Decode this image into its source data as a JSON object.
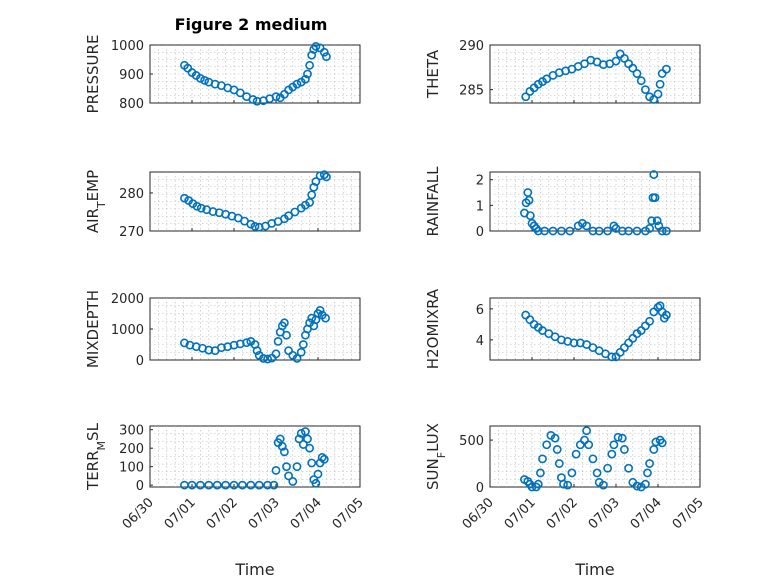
{
  "figure_title": "Figure 2 medium",
  "marker_color": "#0072BD",
  "chart_data": [
    {
      "type": "scatter",
      "ylabel": "PRESSURE",
      "ylim": [
        800,
        1000
      ],
      "yticks": [
        "800",
        "900",
        "1000"
      ],
      "ytick_values": [
        800,
        900,
        1000
      ],
      "xlim": [
        0,
        5
      ],
      "xticks": [],
      "x_start_date": "06/30",
      "grid": true,
      "points": [
        [
          0.82,
          930
        ],
        [
          0.9,
          920
        ],
        [
          1.0,
          905
        ],
        [
          1.1,
          895
        ],
        [
          1.2,
          885
        ],
        [
          1.3,
          878
        ],
        [
          1.4,
          872
        ],
        [
          1.55,
          865
        ],
        [
          1.7,
          860
        ],
        [
          1.85,
          852
        ],
        [
          2.0,
          845
        ],
        [
          2.15,
          835
        ],
        [
          2.3,
          822
        ],
        [
          2.45,
          812
        ],
        [
          2.55,
          806
        ],
        [
          2.7,
          808
        ],
        [
          2.85,
          815
        ],
        [
          3.0,
          822
        ],
        [
          3.1,
          818
        ],
        [
          3.2,
          830
        ],
        [
          3.3,
          845
        ],
        [
          3.4,
          855
        ],
        [
          3.5,
          865
        ],
        [
          3.6,
          872
        ],
        [
          3.7,
          882
        ],
        [
          3.75,
          900
        ],
        [
          3.8,
          930
        ],
        [
          3.85,
          965
        ],
        [
          3.9,
          985
        ],
        [
          3.95,
          995
        ],
        [
          4.05,
          990
        ],
        [
          4.15,
          975
        ],
        [
          4.2,
          960
        ]
      ]
    },
    {
      "type": "scatter",
      "ylabel": "THETA",
      "ylim": [
        283.5,
        290
      ],
      "yticks": [
        "285",
        "290"
      ],
      "ytick_values": [
        285,
        290
      ],
      "xlim": [
        0,
        5
      ],
      "xticks": [],
      "grid": true,
      "points": [
        [
          0.85,
          284.2
        ],
        [
          0.95,
          284.8
        ],
        [
          1.05,
          285.2
        ],
        [
          1.15,
          285.6
        ],
        [
          1.25,
          285.9
        ],
        [
          1.35,
          286.2
        ],
        [
          1.5,
          286.6
        ],
        [
          1.65,
          286.9
        ],
        [
          1.8,
          287.1
        ],
        [
          1.95,
          287.3
        ],
        [
          2.1,
          287.6
        ],
        [
          2.25,
          287.9
        ],
        [
          2.4,
          288.3
        ],
        [
          2.55,
          288.1
        ],
        [
          2.7,
          287.8
        ],
        [
          2.85,
          287.9
        ],
        [
          3.0,
          288.2
        ],
        [
          3.1,
          289.0
        ],
        [
          3.2,
          288.5
        ],
        [
          3.3,
          287.9
        ],
        [
          3.4,
          287.4
        ],
        [
          3.5,
          286.8
        ],
        [
          3.6,
          286.0
        ],
        [
          3.7,
          285.0
        ],
        [
          3.8,
          284.2
        ],
        [
          3.9,
          283.9
        ],
        [
          4.0,
          284.5
        ],
        [
          4.05,
          285.6
        ],
        [
          4.1,
          286.8
        ],
        [
          4.2,
          287.3
        ]
      ]
    },
    {
      "type": "scatter",
      "ylabel_main": "AIR",
      "ylabel_sub": "T",
      "ylabel_tail": "EMP",
      "ylim": [
        270,
        285.5
      ],
      "yticks": [
        "270",
        "280"
      ],
      "ytick_values": [
        270,
        280
      ],
      "xlim": [
        0,
        5
      ],
      "xticks": [],
      "grid": true,
      "points": [
        [
          0.82,
          278.6
        ],
        [
          0.92,
          278.0
        ],
        [
          1.02,
          277.2
        ],
        [
          1.12,
          276.5
        ],
        [
          1.22,
          276.0
        ],
        [
          1.35,
          275.6
        ],
        [
          1.5,
          275.1
        ],
        [
          1.65,
          274.8
        ],
        [
          1.8,
          274.4
        ],
        [
          1.95,
          273.9
        ],
        [
          2.1,
          273.4
        ],
        [
          2.25,
          272.6
        ],
        [
          2.4,
          271.8
        ],
        [
          2.5,
          271.2
        ],
        [
          2.6,
          271.0
        ],
        [
          2.75,
          271.3
        ],
        [
          2.9,
          272.0
        ],
        [
          3.05,
          272.5
        ],
        [
          3.2,
          273.2
        ],
        [
          3.3,
          274.0
        ],
        [
          3.45,
          275.0
        ],
        [
          3.6,
          276.0
        ],
        [
          3.7,
          276.8
        ],
        [
          3.8,
          277.5
        ],
        [
          3.85,
          279.5
        ],
        [
          3.9,
          281.5
        ],
        [
          3.95,
          283.0
        ],
        [
          4.05,
          284.5
        ],
        [
          4.15,
          284.8
        ],
        [
          4.2,
          284.2
        ]
      ]
    },
    {
      "type": "scatter",
      "ylabel": "RAINFALL",
      "ylim": [
        0,
        2.3
      ],
      "yticks": [
        "0",
        "1",
        "2"
      ],
      "ytick_values": [
        0,
        1,
        2
      ],
      "xlim": [
        0,
        5
      ],
      "xticks": [],
      "grid": true,
      "points": [
        [
          0.82,
          0.7
        ],
        [
          0.86,
          1.1
        ],
        [
          0.9,
          1.5
        ],
        [
          0.93,
          1.2
        ],
        [
          0.96,
          0.6
        ],
        [
          1.0,
          0.3
        ],
        [
          1.05,
          0.2
        ],
        [
          1.1,
          0.1
        ],
        [
          1.15,
          0
        ],
        [
          1.3,
          0
        ],
        [
          1.5,
          0
        ],
        [
          1.7,
          0
        ],
        [
          1.9,
          0
        ],
        [
          2.1,
          0.2
        ],
        [
          2.2,
          0.3
        ],
        [
          2.3,
          0.2
        ],
        [
          2.45,
          0
        ],
        [
          2.6,
          0
        ],
        [
          2.8,
          0
        ],
        [
          2.95,
          0.2
        ],
        [
          3.0,
          0.1
        ],
        [
          3.15,
          0
        ],
        [
          3.3,
          0
        ],
        [
          3.5,
          0
        ],
        [
          3.7,
          0
        ],
        [
          3.8,
          0.1
        ],
        [
          3.85,
          0.4
        ],
        [
          3.88,
          1.3
        ],
        [
          3.9,
          2.2
        ],
        [
          3.93,
          1.3
        ],
        [
          3.98,
          0.4
        ],
        [
          4.02,
          0.2
        ],
        [
          4.1,
          0
        ],
        [
          4.2,
          0
        ]
      ]
    },
    {
      "type": "scatter",
      "ylabel": "MIXDEPTH",
      "ylim": [
        0,
        2000
      ],
      "yticks": [
        "0",
        "1000",
        "2000"
      ],
      "ytick_values": [
        0,
        1000,
        2000
      ],
      "xlim": [
        0,
        5
      ],
      "xticks": [],
      "grid": true,
      "points": [
        [
          0.82,
          550
        ],
        [
          0.95,
          480
        ],
        [
          1.1,
          430
        ],
        [
          1.25,
          380
        ],
        [
          1.4,
          320
        ],
        [
          1.55,
          300
        ],
        [
          1.7,
          400
        ],
        [
          1.85,
          430
        ],
        [
          2.0,
          480
        ],
        [
          2.15,
          520
        ],
        [
          2.3,
          560
        ],
        [
          2.4,
          600
        ],
        [
          2.5,
          500
        ],
        [
          2.55,
          300
        ],
        [
          2.6,
          150
        ],
        [
          2.7,
          50
        ],
        [
          2.8,
          30
        ],
        [
          2.9,
          60
        ],
        [
          3.0,
          200
        ],
        [
          3.05,
          600
        ],
        [
          3.1,
          900
        ],
        [
          3.15,
          1100
        ],
        [
          3.2,
          1200
        ],
        [
          3.25,
          800
        ],
        [
          3.3,
          300
        ],
        [
          3.4,
          150
        ],
        [
          3.5,
          50
        ],
        [
          3.6,
          250
        ],
        [
          3.65,
          500
        ],
        [
          3.7,
          800
        ],
        [
          3.75,
          1000
        ],
        [
          3.8,
          1200
        ],
        [
          3.85,
          1350
        ],
        [
          3.9,
          1100
        ],
        [
          3.95,
          1300
        ],
        [
          4.0,
          1500
        ],
        [
          4.05,
          1600
        ],
        [
          4.1,
          1450
        ],
        [
          4.18,
          1350
        ]
      ]
    },
    {
      "type": "scatter",
      "ylabel": "H2OMIXRA",
      "ylim": [
        2.7,
        6.7
      ],
      "yticks": [
        "4",
        "6"
      ],
      "ytick_values": [
        4,
        6
      ],
      "xlim": [
        0,
        5
      ],
      "xticks": [],
      "grid": true,
      "points": [
        [
          0.85,
          5.6
        ],
        [
          0.95,
          5.3
        ],
        [
          1.05,
          5.0
        ],
        [
          1.15,
          4.8
        ],
        [
          1.25,
          4.6
        ],
        [
          1.4,
          4.4
        ],
        [
          1.55,
          4.2
        ],
        [
          1.7,
          4.0
        ],
        [
          1.85,
          3.9
        ],
        [
          2.0,
          3.8
        ],
        [
          2.15,
          3.8
        ],
        [
          2.3,
          3.7
        ],
        [
          2.45,
          3.5
        ],
        [
          2.6,
          3.3
        ],
        [
          2.75,
          3.1
        ],
        [
          2.9,
          2.9
        ],
        [
          3.0,
          2.9
        ],
        [
          3.1,
          3.2
        ],
        [
          3.2,
          3.5
        ],
        [
          3.3,
          3.8
        ],
        [
          3.4,
          4.1
        ],
        [
          3.5,
          4.4
        ],
        [
          3.6,
          4.6
        ],
        [
          3.7,
          4.9
        ],
        [
          3.8,
          5.2
        ],
        [
          3.9,
          5.8
        ],
        [
          4.0,
          6.1
        ],
        [
          4.05,
          6.2
        ],
        [
          4.1,
          5.8
        ],
        [
          4.15,
          5.4
        ],
        [
          4.2,
          5.6
        ]
      ]
    },
    {
      "type": "scatter",
      "ylabel_main": "TERR",
      "ylabel_sub": "M",
      "ylabel_tail": "SL",
      "ylim": [
        -10,
        320
      ],
      "yticks": [
        "0",
        "100",
        "200",
        "300"
      ],
      "ytick_values": [
        0,
        100,
        200,
        300
      ],
      "xlim": [
        0,
        5
      ],
      "xticks": [
        "06/30",
        "07/01",
        "07/02",
        "07/03",
        "07/04",
        "07/05"
      ],
      "xlabel": "Time",
      "grid": true,
      "points": [
        [
          0.82,
          0
        ],
        [
          1.0,
          0
        ],
        [
          1.2,
          0
        ],
        [
          1.4,
          0
        ],
        [
          1.6,
          0
        ],
        [
          1.8,
          0
        ],
        [
          2.0,
          0
        ],
        [
          2.2,
          0
        ],
        [
          2.4,
          0
        ],
        [
          2.6,
          0
        ],
        [
          2.8,
          0
        ],
        [
          2.95,
          0
        ],
        [
          3.0,
          80
        ],
        [
          3.05,
          230
        ],
        [
          3.1,
          250
        ],
        [
          3.15,
          210
        ],
        [
          3.2,
          180
        ],
        [
          3.25,
          100
        ],
        [
          3.3,
          50
        ],
        [
          3.4,
          20
        ],
        [
          3.5,
          100
        ],
        [
          3.55,
          250
        ],
        [
          3.6,
          280
        ],
        [
          3.65,
          220
        ],
        [
          3.7,
          290
        ],
        [
          3.75,
          250
        ],
        [
          3.8,
          200
        ],
        [
          3.85,
          120
        ],
        [
          3.9,
          30
        ],
        [
          3.95,
          10
        ],
        [
          4.0,
          60
        ],
        [
          4.05,
          120
        ],
        [
          4.1,
          150
        ],
        [
          4.15,
          140
        ]
      ]
    },
    {
      "type": "scatter",
      "ylabel_main": "SUN",
      "ylabel_sub": "F",
      "ylabel_tail": "LUX",
      "ylim": [
        0,
        650
      ],
      "yticks": [
        "0",
        "500"
      ],
      "ytick_values": [
        0,
        500
      ],
      "xlim": [
        0,
        5
      ],
      "xticks": [
        "06/30",
        "07/01",
        "07/02",
        "07/03",
        "07/04",
        "07/05"
      ],
      "xlabel": "Time",
      "grid": true,
      "points": [
        [
          0.82,
          80
        ],
        [
          0.9,
          60
        ],
        [
          0.95,
          30
        ],
        [
          1.0,
          0
        ],
        [
          1.1,
          0
        ],
        [
          1.15,
          30
        ],
        [
          1.2,
          150
        ],
        [
          1.25,
          300
        ],
        [
          1.35,
          450
        ],
        [
          1.45,
          550
        ],
        [
          1.55,
          520
        ],
        [
          1.6,
          400
        ],
        [
          1.65,
          250
        ],
        [
          1.7,
          100
        ],
        [
          1.75,
          30
        ],
        [
          1.85,
          20
        ],
        [
          1.95,
          150
        ],
        [
          2.05,
          350
        ],
        [
          2.15,
          450
        ],
        [
          2.25,
          500
        ],
        [
          2.3,
          600
        ],
        [
          2.35,
          450
        ],
        [
          2.45,
          300
        ],
        [
          2.55,
          150
        ],
        [
          2.6,
          50
        ],
        [
          2.7,
          20
        ],
        [
          2.8,
          200
        ],
        [
          2.9,
          350
        ],
        [
          2.95,
          450
        ],
        [
          3.05,
          530
        ],
        [
          3.15,
          520
        ],
        [
          3.2,
          400
        ],
        [
          3.3,
          200
        ],
        [
          3.4,
          50
        ],
        [
          3.5,
          10
        ],
        [
          3.6,
          0
        ],
        [
          3.7,
          30
        ],
        [
          3.75,
          150
        ],
        [
          3.8,
          250
        ],
        [
          3.9,
          400
        ],
        [
          3.95,
          480
        ],
        [
          4.05,
          500
        ],
        [
          4.1,
          470
        ]
      ]
    }
  ]
}
